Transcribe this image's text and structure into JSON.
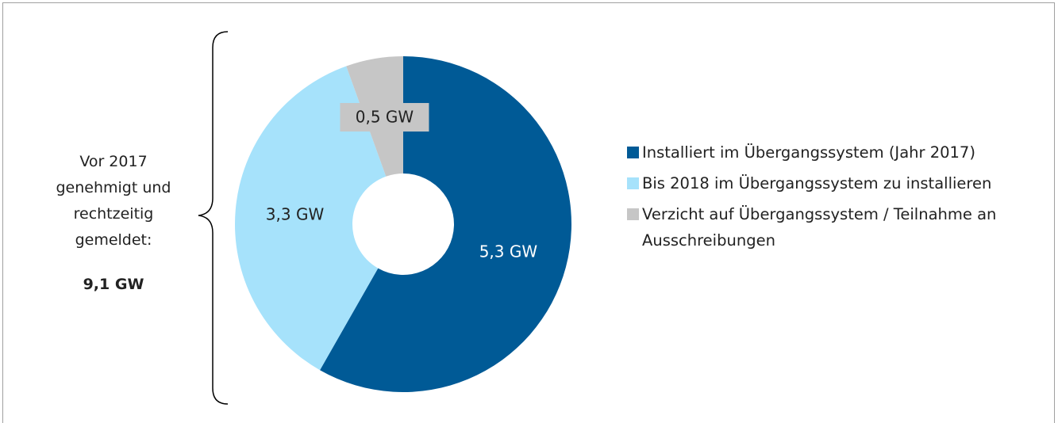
{
  "chart_data": {
    "type": "donut",
    "categories": [
      "Installiert im Übergangssystem (Jahr 2017)",
      "Bis 2018 im Übergangssystem zu installieren",
      "Verzicht auf Übergangssystem / Teilnahme an Ausschreibungen"
    ],
    "values": [
      5.3,
      3.3,
      0.5
    ],
    "value_labels": [
      "5,3 GW",
      "3,3 GW",
      "0,5 GW"
    ],
    "colors": [
      "#005a96",
      "#a6e2fb",
      "#c6c6c6"
    ],
    "annotation": "Vor 2017 genehmigt und rechtzeitig gemeldet:",
    "total_label": "9,1 GW",
    "legend": "right"
  }
}
